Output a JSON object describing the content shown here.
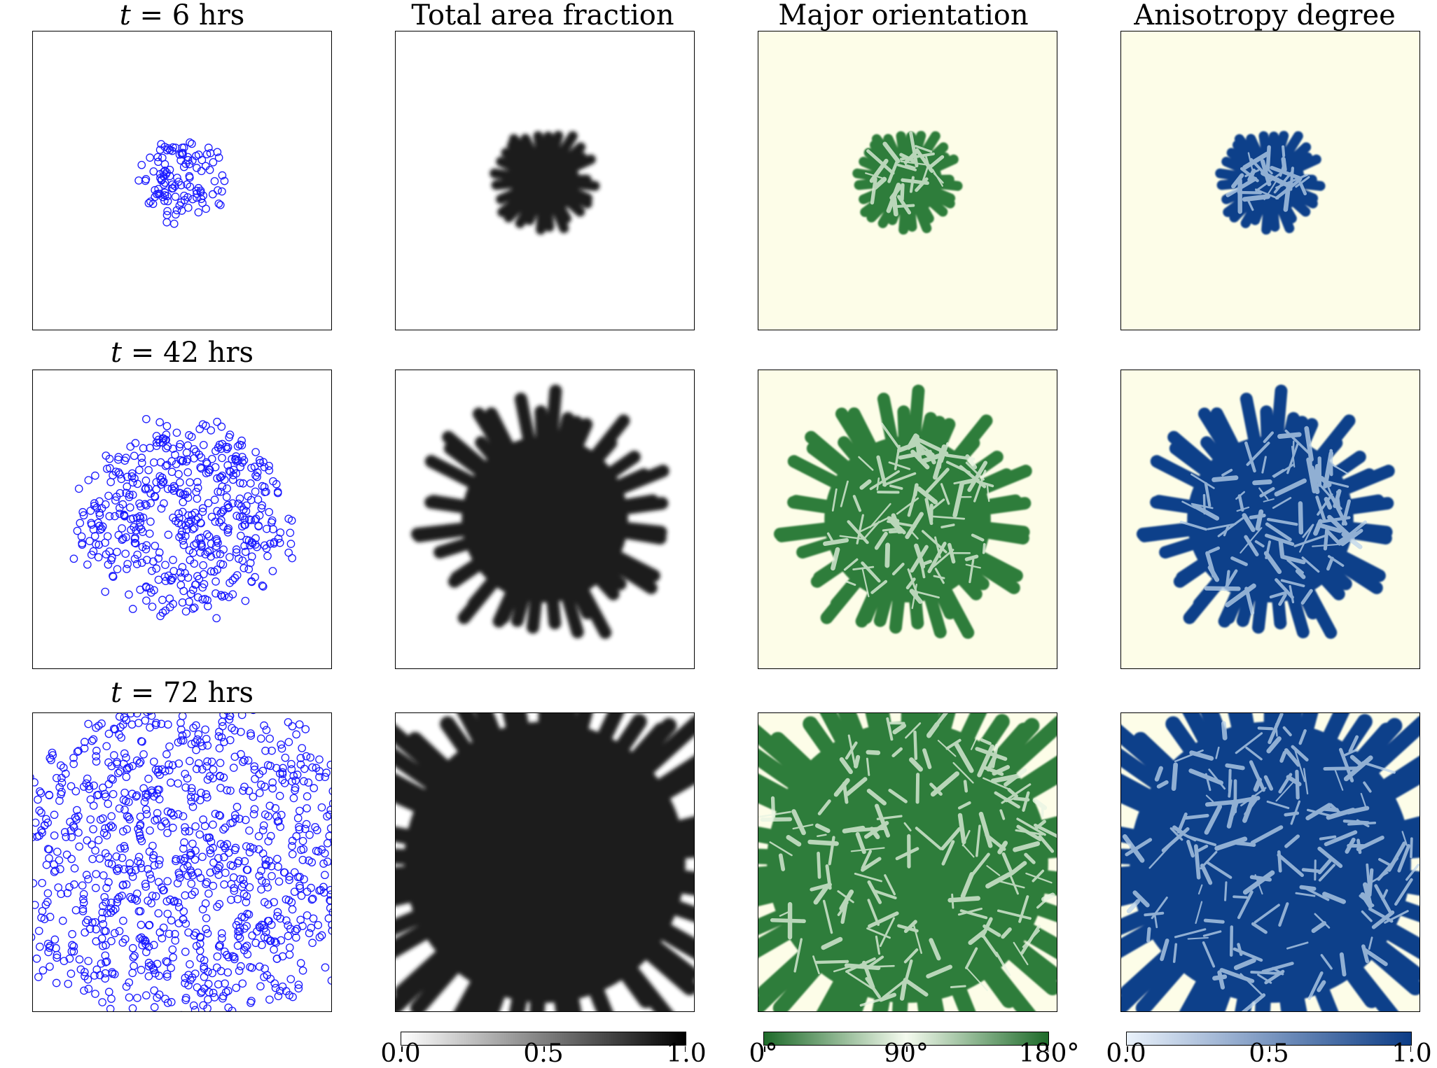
{
  "columns": {
    "area_title": "Total area fraction",
    "orientation_title": "Major orientation",
    "anisotropy_title": "Anisotropy degree"
  },
  "rows": [
    {
      "time_prefix": "t",
      "time_value": "= 6 hrs"
    },
    {
      "time_prefix": "t",
      "time_value": "= 42 hrs"
    },
    {
      "time_prefix": "t",
      "time_value": "= 72 hrs"
    }
  ],
  "colorbars": {
    "area": {
      "ticks": [
        "0.0",
        "0.5",
        "1.0"
      ],
      "start": "#ffffff",
      "end": "#000000"
    },
    "orientation": {
      "ticks": [
        "0°",
        "90°",
        "180°"
      ],
      "start": "#1e6b2a",
      "middle": "#f5fbef",
      "end": "#1e6b2a"
    },
    "anisotropy": {
      "ticks": [
        "0.0",
        "0.5",
        "1.0"
      ],
      "start": "#eaf2fb",
      "end": "#0c3c86"
    }
  },
  "colors": {
    "cell_outline": "#1a1aff",
    "area_fill": "#1a1a1a",
    "orientation_background": "#fdfde8",
    "orientation_green": "#2e7d3a",
    "orientation_light": "#e8f4e3",
    "anisotropy_background": "#fdfde8",
    "anisotropy_blue": "#0e3f8a",
    "anisotropy_light": "#bcd4ec"
  },
  "colony": {
    "spread_fraction": [
      0.28,
      0.68,
      1.15
    ],
    "cell_counts": [
      120,
      520,
      1100
    ]
  }
}
